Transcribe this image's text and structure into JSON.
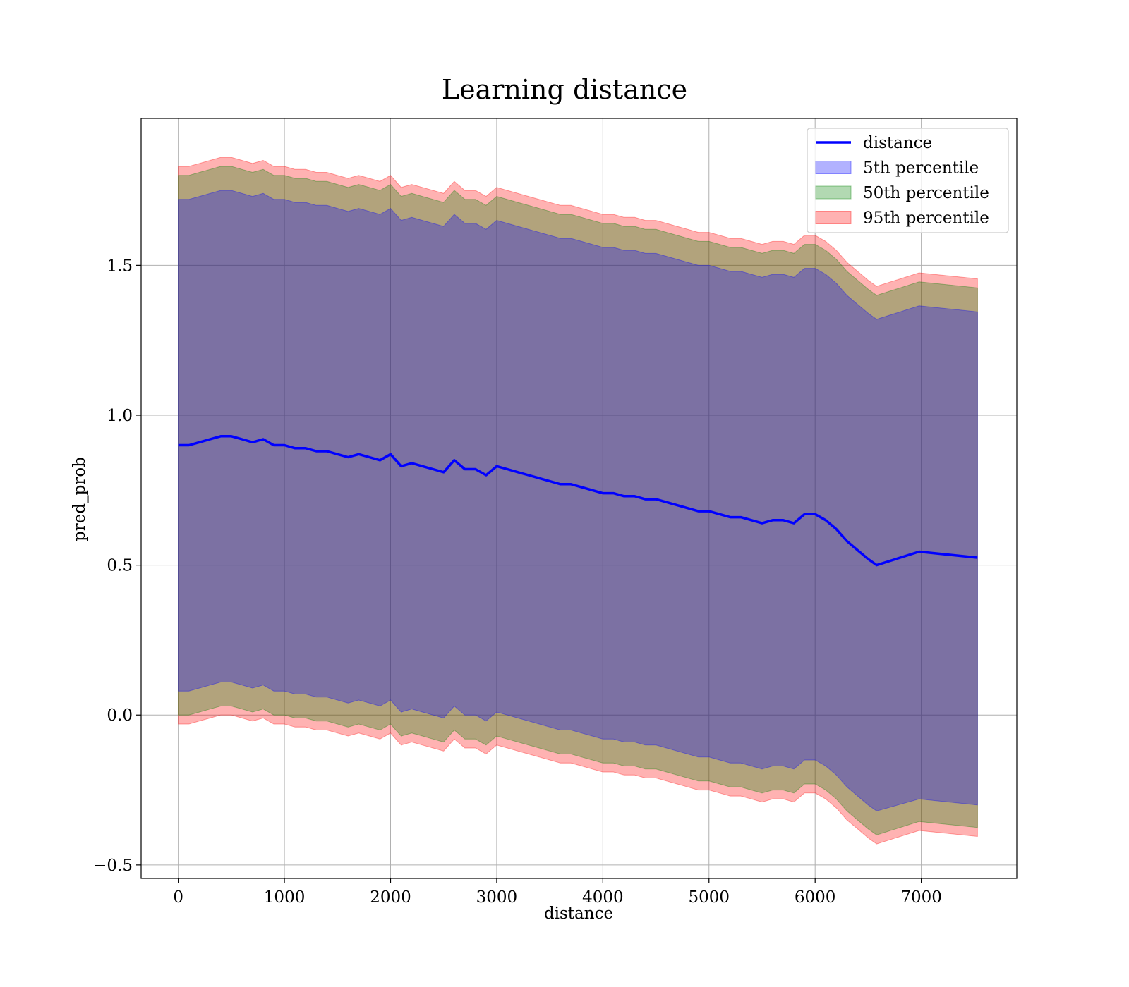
{
  "chart_data": {
    "type": "line",
    "title": "Learning distance",
    "xlabel": "distance",
    "ylabel": "pred_prob",
    "xlim": [
      -350,
      7900
    ],
    "ylim": [
      -0.545,
      1.99
    ],
    "grid": true,
    "legend_position": "top-right",
    "x_ticks": [
      {
        "value": 0,
        "label": "0"
      },
      {
        "value": 1000,
        "label": "1000"
      },
      {
        "value": 2000,
        "label": "2000"
      },
      {
        "value": 3000,
        "label": "3000"
      },
      {
        "value": 4000,
        "label": "4000"
      },
      {
        "value": 5000,
        "label": "5000"
      },
      {
        "value": 6000,
        "label": "6000"
      },
      {
        "value": 7000,
        "label": "7000"
      }
    ],
    "y_ticks": [
      {
        "value": -0.5,
        "label": "−0.5"
      },
      {
        "value": 0.0,
        "label": "0.0"
      },
      {
        "value": 0.5,
        "label": "0.5"
      },
      {
        "value": 1.0,
        "label": "1.0"
      },
      {
        "value": 1.5,
        "label": "1.5"
      }
    ],
    "colors": {
      "line": "#0000ff",
      "band_5th": "#0000ff",
      "band_50th": "#008000",
      "band_95th": "#ff0000"
    },
    "x": [
      0,
      100,
      200,
      300,
      400,
      500,
      600,
      700,
      800,
      900,
      1000,
      1100,
      1200,
      1300,
      1400,
      1500,
      1600,
      1700,
      1800,
      1900,
      2000,
      2100,
      2200,
      2300,
      2400,
      2500,
      2600,
      2700,
      2800,
      2900,
      3000,
      3100,
      3200,
      3300,
      3400,
      3500,
      3600,
      3700,
      3800,
      3900,
      4000,
      4100,
      4200,
      4300,
      4400,
      4500,
      4600,
      4700,
      4800,
      4900,
      5000,
      5100,
      5200,
      5300,
      5400,
      5500,
      5600,
      5700,
      5800,
      5900,
      6000,
      6100,
      6200,
      6300,
      6400,
      6500,
      6580,
      6980,
      7530
    ],
    "series": [
      {
        "name": "distance",
        "values": [
          0.9,
          0.9,
          0.91,
          0.92,
          0.93,
          0.93,
          0.92,
          0.91,
          0.92,
          0.9,
          0.9,
          0.89,
          0.89,
          0.88,
          0.88,
          0.87,
          0.86,
          0.87,
          0.86,
          0.85,
          0.87,
          0.83,
          0.84,
          0.83,
          0.82,
          0.81,
          0.85,
          0.82,
          0.82,
          0.8,
          0.83,
          0.82,
          0.81,
          0.8,
          0.79,
          0.78,
          0.77,
          0.77,
          0.76,
          0.75,
          0.74,
          0.74,
          0.73,
          0.73,
          0.72,
          0.72,
          0.71,
          0.7,
          0.69,
          0.68,
          0.68,
          0.67,
          0.66,
          0.66,
          0.65,
          0.64,
          0.65,
          0.65,
          0.64,
          0.67,
          0.67,
          0.65,
          0.62,
          0.58,
          0.55,
          0.52,
          0.5,
          0.545,
          0.525
        ]
      },
      {
        "name": "5th percentile",
        "lower": [
          0.08,
          0.08,
          0.09,
          0.1,
          0.11,
          0.11,
          0.1,
          0.09,
          0.1,
          0.08,
          0.08,
          0.07,
          0.07,
          0.06,
          0.06,
          0.05,
          0.04,
          0.05,
          0.04,
          0.03,
          0.05,
          0.01,
          0.02,
          0.01,
          0.0,
          -0.01,
          0.03,
          0.0,
          0.0,
          -0.02,
          0.01,
          0.0,
          -0.01,
          -0.02,
          -0.03,
          -0.04,
          -0.05,
          -0.05,
          -0.06,
          -0.07,
          -0.08,
          -0.08,
          -0.09,
          -0.09,
          -0.1,
          -0.1,
          -0.11,
          -0.12,
          -0.13,
          -0.14,
          -0.14,
          -0.15,
          -0.16,
          -0.16,
          -0.17,
          -0.18,
          -0.17,
          -0.17,
          -0.18,
          -0.15,
          -0.15,
          -0.17,
          -0.2,
          -0.24,
          -0.27,
          -0.3,
          -0.32,
          -0.28,
          -0.3
        ],
        "upper": [
          1.72,
          1.72,
          1.73,
          1.74,
          1.75,
          1.75,
          1.74,
          1.73,
          1.74,
          1.72,
          1.72,
          1.71,
          1.71,
          1.7,
          1.7,
          1.69,
          1.68,
          1.69,
          1.68,
          1.67,
          1.69,
          1.65,
          1.66,
          1.65,
          1.64,
          1.63,
          1.67,
          1.64,
          1.64,
          1.62,
          1.65,
          1.64,
          1.63,
          1.62,
          1.61,
          1.6,
          1.59,
          1.59,
          1.58,
          1.57,
          1.56,
          1.56,
          1.55,
          1.55,
          1.54,
          1.54,
          1.53,
          1.52,
          1.51,
          1.5,
          1.5,
          1.49,
          1.48,
          1.48,
          1.47,
          1.46,
          1.47,
          1.47,
          1.46,
          1.49,
          1.49,
          1.47,
          1.44,
          1.4,
          1.37,
          1.34,
          1.32,
          1.365,
          1.345
        ]
      },
      {
        "name": "50th percentile",
        "lower": [
          0.0,
          0.0,
          0.01,
          0.02,
          0.03,
          0.03,
          0.02,
          0.01,
          0.02,
          0.0,
          0.0,
          -0.01,
          -0.01,
          -0.02,
          -0.02,
          -0.03,
          -0.04,
          -0.03,
          -0.04,
          -0.05,
          -0.03,
          -0.07,
          -0.06,
          -0.07,
          -0.08,
          -0.09,
          -0.05,
          -0.08,
          -0.08,
          -0.1,
          -0.07,
          -0.08,
          -0.09,
          -0.1,
          -0.11,
          -0.12,
          -0.13,
          -0.13,
          -0.14,
          -0.15,
          -0.16,
          -0.16,
          -0.17,
          -0.17,
          -0.18,
          -0.18,
          -0.19,
          -0.2,
          -0.21,
          -0.22,
          -0.22,
          -0.23,
          -0.24,
          -0.24,
          -0.25,
          -0.26,
          -0.25,
          -0.25,
          -0.26,
          -0.23,
          -0.23,
          -0.25,
          -0.28,
          -0.32,
          -0.35,
          -0.38,
          -0.4,
          -0.355,
          -0.375
        ],
        "upper": [
          1.8,
          1.8,
          1.81,
          1.82,
          1.83,
          1.83,
          1.82,
          1.81,
          1.82,
          1.8,
          1.8,
          1.79,
          1.79,
          1.78,
          1.78,
          1.77,
          1.76,
          1.77,
          1.76,
          1.75,
          1.77,
          1.73,
          1.74,
          1.73,
          1.72,
          1.71,
          1.75,
          1.72,
          1.72,
          1.7,
          1.73,
          1.72,
          1.71,
          1.7,
          1.69,
          1.68,
          1.67,
          1.67,
          1.66,
          1.65,
          1.64,
          1.64,
          1.63,
          1.63,
          1.62,
          1.62,
          1.61,
          1.6,
          1.59,
          1.58,
          1.58,
          1.57,
          1.56,
          1.56,
          1.55,
          1.54,
          1.55,
          1.55,
          1.54,
          1.57,
          1.57,
          1.55,
          1.52,
          1.48,
          1.45,
          1.42,
          1.4,
          1.445,
          1.425
        ]
      },
      {
        "name": "95th percentile",
        "lower": [
          -0.03,
          -0.03,
          -0.02,
          -0.01,
          0.0,
          0.0,
          -0.01,
          -0.02,
          -0.01,
          -0.03,
          -0.03,
          -0.04,
          -0.04,
          -0.05,
          -0.05,
          -0.06,
          -0.07,
          -0.06,
          -0.07,
          -0.08,
          -0.06,
          -0.1,
          -0.09,
          -0.1,
          -0.11,
          -0.12,
          -0.08,
          -0.11,
          -0.11,
          -0.13,
          -0.1,
          -0.11,
          -0.12,
          -0.13,
          -0.14,
          -0.15,
          -0.16,
          -0.16,
          -0.17,
          -0.18,
          -0.19,
          -0.19,
          -0.2,
          -0.2,
          -0.21,
          -0.21,
          -0.22,
          -0.23,
          -0.24,
          -0.25,
          -0.25,
          -0.26,
          -0.27,
          -0.27,
          -0.28,
          -0.29,
          -0.28,
          -0.28,
          -0.29,
          -0.26,
          -0.26,
          -0.28,
          -0.31,
          -0.35,
          -0.38,
          -0.41,
          -0.43,
          -0.385,
          -0.405
        ],
        "upper": [
          1.83,
          1.83,
          1.84,
          1.85,
          1.86,
          1.86,
          1.85,
          1.84,
          1.85,
          1.83,
          1.83,
          1.82,
          1.82,
          1.81,
          1.81,
          1.8,
          1.79,
          1.8,
          1.79,
          1.78,
          1.8,
          1.76,
          1.77,
          1.76,
          1.75,
          1.74,
          1.78,
          1.75,
          1.75,
          1.73,
          1.76,
          1.75,
          1.74,
          1.73,
          1.72,
          1.71,
          1.7,
          1.7,
          1.69,
          1.68,
          1.67,
          1.67,
          1.66,
          1.66,
          1.65,
          1.65,
          1.64,
          1.63,
          1.62,
          1.61,
          1.61,
          1.6,
          1.59,
          1.59,
          1.58,
          1.57,
          1.58,
          1.58,
          1.57,
          1.6,
          1.6,
          1.58,
          1.55,
          1.51,
          1.48,
          1.45,
          1.43,
          1.475,
          1.455
        ]
      }
    ],
    "legend": [
      {
        "label": "distance",
        "kind": "line",
        "color": "#0000ff"
      },
      {
        "label": "5th percentile",
        "kind": "patch",
        "color": "#0000ff"
      },
      {
        "label": "50th percentile",
        "kind": "patch",
        "color": "#008000"
      },
      {
        "label": "95th percentile",
        "kind": "patch",
        "color": "#ff0000"
      }
    ]
  }
}
